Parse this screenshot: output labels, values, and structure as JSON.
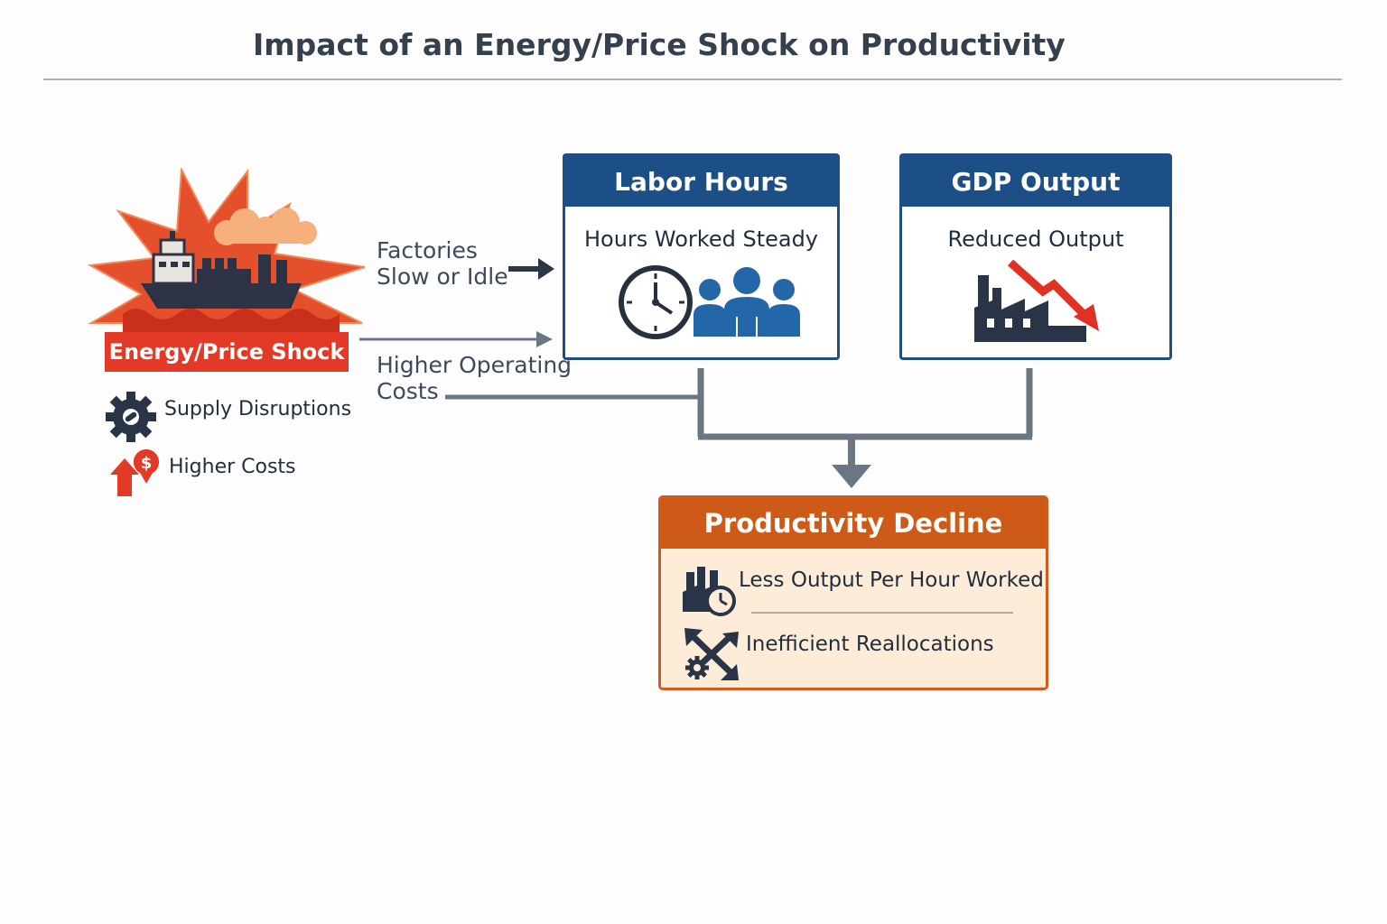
{
  "title": "Impact of an Energy/Price Shock on Productivity",
  "shock": {
    "label": "Energy/Price Shock",
    "items": [
      {
        "label": "Supply Disruptions",
        "icon": "gear-icon"
      },
      {
        "label": "Higher Costs",
        "icon": "cost-up-icon"
      }
    ]
  },
  "flows": {
    "top": "Factories\nSlow or Idle",
    "bottom": "Higher Operating\nCosts"
  },
  "labor_box": {
    "title": "Labor Hours",
    "subtitle": "Hours Worked Steady",
    "icons": [
      "clock-icon",
      "workers-icon"
    ]
  },
  "gdp_box": {
    "title": "GDP Output",
    "subtitle": "Reduced Output",
    "icons": [
      "factory-icon",
      "down-arrow-icon"
    ]
  },
  "productivity_box": {
    "title": "Productivity Decline",
    "items": [
      {
        "label": "Less Output Per Hour Worked",
        "icon": "factory-clock-icon"
      },
      {
        "label": "Inefficient Reallocations",
        "icon": "reallocation-icon"
      }
    ]
  },
  "colors": {
    "navy": "#1b4f85",
    "orange": "#cd5a17",
    "red": "#e23a26",
    "connector": "#5f6c7b"
  }
}
